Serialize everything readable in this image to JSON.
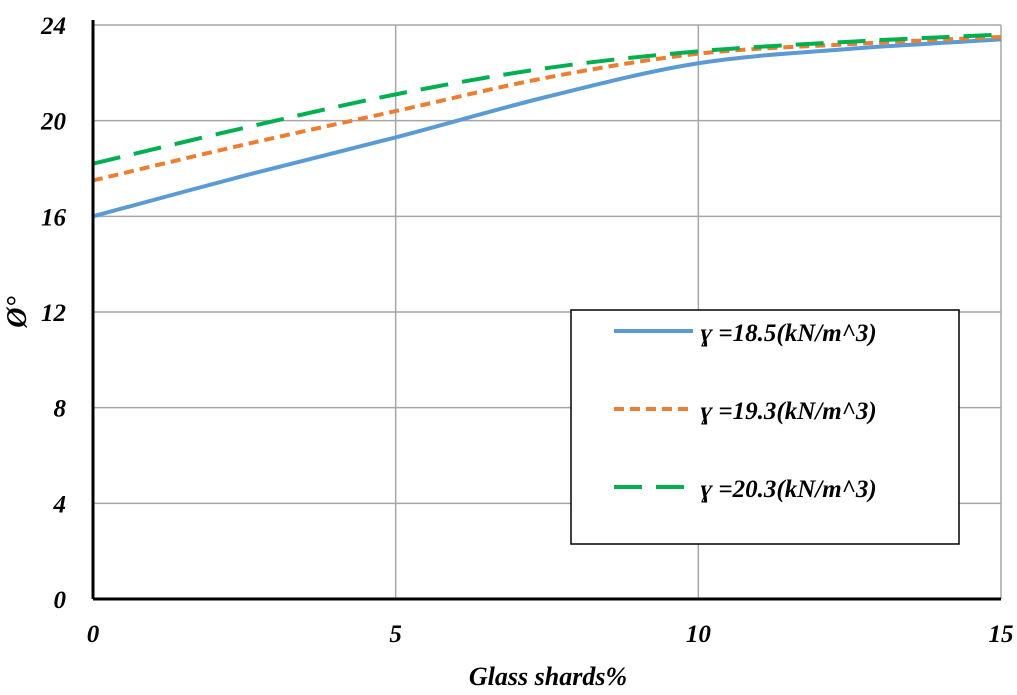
{
  "chart_data": {
    "type": "line",
    "title": "",
    "xlabel": "Glass shards%",
    "ylabel": "Ø°",
    "xlim": [
      0,
      15
    ],
    "ylim": [
      0,
      24
    ],
    "xticks": [
      0,
      5,
      10,
      15
    ],
    "yticks": [
      0,
      4,
      8,
      12,
      16,
      20,
      24
    ],
    "grid": true,
    "legend_placement": "center-right",
    "x": [
      0,
      2.5,
      5,
      7.5,
      10,
      12.5,
      15
    ],
    "series": [
      {
        "name": "ɣ =18.5(kN/m^3)",
        "values": [
          16.0,
          17.7,
          19.3,
          21.0,
          22.4,
          23.0,
          23.4
        ],
        "color": "#5b9bd5",
        "dash": "solid"
      },
      {
        "name": "ɣ =19.3(kN/m^3)",
        "values": [
          17.5,
          19.0,
          20.4,
          21.8,
          22.8,
          23.2,
          23.5
        ],
        "color": "#ed7d31",
        "dash": "short"
      },
      {
        "name": "ɣ =20.3(kN/m^3)",
        "values": [
          18.2,
          19.7,
          21.1,
          22.2,
          22.9,
          23.3,
          23.6
        ],
        "color": "#00b050",
        "dash": "long"
      }
    ]
  }
}
